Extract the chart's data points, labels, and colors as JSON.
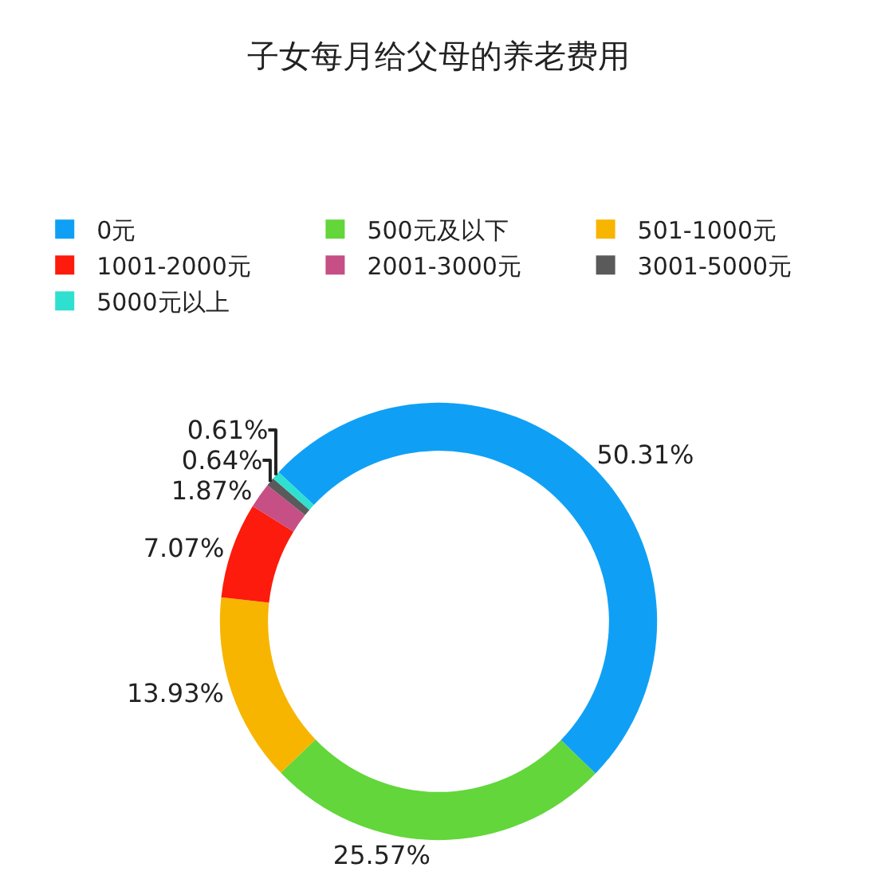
{
  "chart_data": {
    "type": "donut",
    "title": "子女每月给父母的养老费用",
    "categories": [
      "0元",
      "500元及以下",
      "501-1000元",
      "1001-2000元",
      "2001-3000元",
      "3001-5000元",
      "5000元以上"
    ],
    "values": [
      50.31,
      25.57,
      13.93,
      7.07,
      1.87,
      0.64,
      0.61
    ],
    "colors": [
      "#0fa0f5",
      "#62d63a",
      "#f7b500",
      "#fc1b0c",
      "#c64f86",
      "#5a5a5a",
      "#2fe0d0"
    ],
    "value_labels": [
      "50.31%",
      "25.57%",
      "13.93%",
      "7.07%",
      "1.87%",
      "0.64%",
      "0.61%"
    ],
    "legend": "top"
  }
}
